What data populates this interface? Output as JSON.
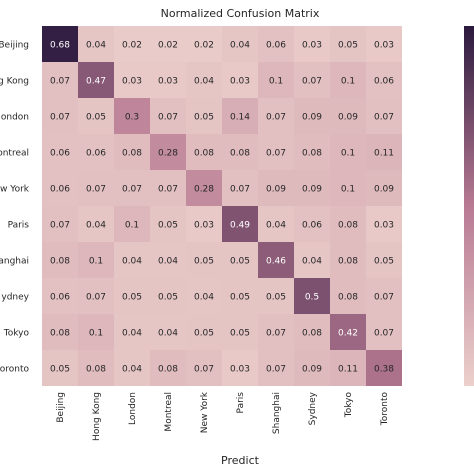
{
  "chart_data": {
    "type": "heatmap",
    "title": "Normalized Confusion Matrix",
    "xlabel": "Predict",
    "ylabel": "",
    "x_categories": [
      "Beijing",
      "Hong Kong",
      "London",
      "Montreal",
      "New York",
      "Paris",
      "Shanghai",
      "Sydney",
      "Tokyo",
      "Toronto"
    ],
    "y_categories": [
      "Beijing",
      "Hong Kong",
      "London",
      "Montreal",
      "New York",
      "Paris",
      "Shanghai",
      "Sydney",
      "Tokyo",
      "Toronto"
    ],
    "y_tick_labels_visible": [
      "Beijing",
      "g Kong",
      "ondon",
      "ontreal",
      "ew York",
      "Paris",
      "anghai",
      "ydney",
      "Tokyo",
      "oronto"
    ],
    "values": [
      [
        0.68,
        0.04,
        0.02,
        0.02,
        0.02,
        0.04,
        0.06,
        0.03,
        0.05,
        0.03
      ],
      [
        0.07,
        0.47,
        0.03,
        0.03,
        0.04,
        0.03,
        0.1,
        0.07,
        0.1,
        0.06
      ],
      [
        0.07,
        0.05,
        0.3,
        0.07,
        0.05,
        0.14,
        0.07,
        0.09,
        0.09,
        0.07
      ],
      [
        0.06,
        0.06,
        0.08,
        0.28,
        0.08,
        0.08,
        0.07,
        0.08,
        0.1,
        0.11
      ],
      [
        0.06,
        0.07,
        0.07,
        0.07,
        0.28,
        0.07,
        0.09,
        0.09,
        0.1,
        0.09
      ],
      [
        0.07,
        0.04,
        0.1,
        0.05,
        0.03,
        0.49,
        0.04,
        0.06,
        0.08,
        0.03
      ],
      [
        0.08,
        0.1,
        0.04,
        0.04,
        0.05,
        0.05,
        0.46,
        0.04,
        0.08,
        0.05
      ],
      [
        0.06,
        0.07,
        0.05,
        0.05,
        0.04,
        0.05,
        0.05,
        0.5,
        0.08,
        0.07
      ],
      [
        0.08,
        0.1,
        0.04,
        0.04,
        0.05,
        0.05,
        0.07,
        0.08,
        0.42,
        0.07
      ],
      [
        0.05,
        0.08,
        0.04,
        0.08,
        0.07,
        0.03,
        0.07,
        0.09,
        0.11,
        0.38
      ]
    ],
    "value_range": [
      0.0,
      0.7
    ],
    "colormap": {
      "low": "#ecd0cc",
      "mid": "#b87a93",
      "high": "#2b1a3e"
    },
    "text_color_dark": "#262626",
    "text_color_light": "#ffffff",
    "colorbar": true,
    "grid": false
  }
}
